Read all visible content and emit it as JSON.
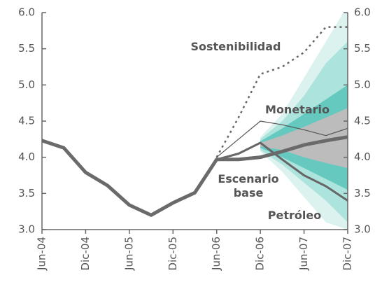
{
  "chart_data": {
    "type": "line",
    "categories": [
      "Jun-04",
      null,
      "Dic-04",
      null,
      "Jun-05",
      null,
      "Dic-05",
      null,
      "Jun-06",
      null,
      "Dic-06",
      null,
      "Jun-07",
      null,
      "Dic-07"
    ],
    "ylim": [
      3,
      6
    ],
    "yticks": [
      {
        "value": 3,
        "label": "3.0"
      },
      3.5,
      {
        "value": 4,
        "label": "4.0"
      },
      4.5,
      {
        "value": 5,
        "label": "5.0"
      },
      5.5,
      {
        "value": 6,
        "label": "6.0"
      }
    ],
    "y2lim": [
      3,
      6
    ],
    "y2ticks": [
      {
        "value": 3,
        "label": "3.0"
      },
      3.5,
      {
        "value": 4,
        "label": "4.0"
      },
      4.5,
      {
        "value": 5,
        "label": "5.0"
      },
      5.5,
      {
        "value": 6,
        "label": "6.0"
      }
    ],
    "bands": [
      {
        "color": "#dcf2ef",
        "lower": [
          null,
          null,
          null,
          null,
          null,
          null,
          null,
          null,
          null,
          null,
          4.08,
          3.8,
          3.45,
          3.1,
          3.0
        ],
        "upper": [
          null,
          null,
          null,
          null,
          null,
          null,
          null,
          null,
          null,
          null,
          4.28,
          4.6,
          5.1,
          5.6,
          6.1
        ]
      },
      {
        "color": "#ade3dd",
        "lower": [
          null,
          null,
          null,
          null,
          null,
          null,
          null,
          null,
          null,
          null,
          4.1,
          3.9,
          3.65,
          3.4,
          3.1
        ],
        "upper": [
          null,
          null,
          null,
          null,
          null,
          null,
          null,
          null,
          null,
          null,
          4.25,
          4.5,
          4.85,
          5.3,
          5.6
        ]
      },
      {
        "color": "#66c9bf",
        "lower": [
          null,
          null,
          null,
          null,
          null,
          null,
          null,
          null,
          null,
          null,
          4.13,
          4.0,
          3.85,
          3.7,
          3.55
        ],
        "upper": [
          null,
          null,
          null,
          null,
          null,
          null,
          null,
          null,
          null,
          null,
          4.22,
          4.4,
          4.6,
          4.8,
          5.0
        ]
      },
      {
        "color": "#bcbcbc",
        "lower": [
          null,
          null,
          null,
          null,
          null,
          null,
          null,
          null,
          null,
          null,
          4.15,
          4.1,
          4.0,
          3.92,
          3.85
        ],
        "upper": [
          null,
          null,
          null,
          null,
          null,
          null,
          null,
          null,
          null,
          null,
          4.2,
          4.3,
          4.42,
          4.55,
          4.68
        ]
      }
    ],
    "series": [
      {
        "name": "Sostenibilidad",
        "color": "#666666",
        "line_width": 2.5,
        "dotted": true,
        "values": [
          null,
          null,
          null,
          null,
          null,
          null,
          null,
          null,
          4.0,
          4.55,
          5.15,
          5.25,
          5.45,
          5.8,
          5.8
        ]
      },
      {
        "name": "Monetario",
        "color": "#555555",
        "line_width": 1.2,
        "values": [
          null,
          null,
          null,
          null,
          null,
          null,
          null,
          null,
          4.0,
          4.25,
          4.5,
          4.45,
          4.38,
          4.3,
          4.4
        ]
      },
      {
        "name": "Petróleo",
        "color": "#666666",
        "line_width": 3,
        "values": [
          null,
          null,
          null,
          null,
          null,
          null,
          null,
          null,
          3.97,
          4.05,
          4.2,
          3.97,
          3.75,
          3.6,
          3.4
        ]
      },
      {
        "name": "Escenario base",
        "color": "#6a6a6a",
        "line_width": 5,
        "values": [
          4.23,
          4.13,
          3.79,
          3.61,
          3.34,
          3.2,
          3.37,
          3.51,
          3.97,
          3.97,
          4.0,
          4.08,
          4.17,
          4.23,
          4.28
        ]
      }
    ]
  }
}
